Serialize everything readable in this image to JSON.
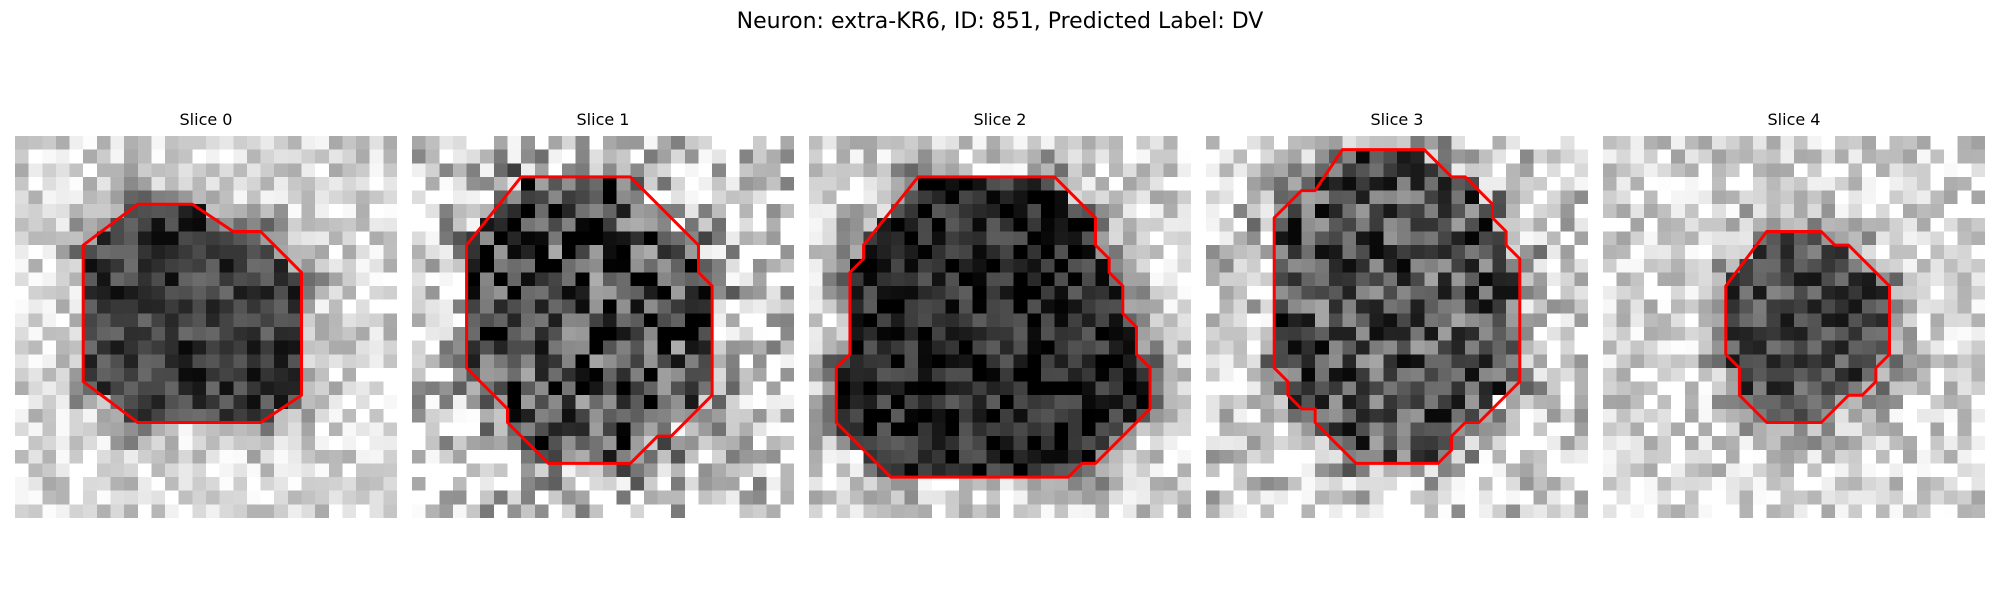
{
  "figure": {
    "title": "Neuron: extra-KR6, ID: 851, Predicted Label: DV"
  },
  "colors": {
    "contour": "#ff0000",
    "background": "#ffffff"
  },
  "colormap": "grayscale",
  "panels": [
    {
      "title": "Slice 0",
      "blob_darkness": 0.62,
      "noise_level": 0.2,
      "seed": 11,
      "contour": [
        [
          9,
          5
        ],
        [
          13,
          5
        ],
        [
          16,
          7
        ],
        [
          18,
          7
        ],
        [
          21,
          10
        ],
        [
          21,
          19
        ],
        [
          18,
          21
        ],
        [
          9,
          21
        ],
        [
          5,
          18
        ],
        [
          5,
          8
        ]
      ]
    },
    {
      "title": "Slice 1",
      "blob_darkness": 0.55,
      "noise_level": 0.38,
      "seed": 23,
      "contour": [
        [
          8,
          3
        ],
        [
          16,
          3
        ],
        [
          21,
          8
        ],
        [
          21,
          10
        ],
        [
          22,
          11
        ],
        [
          22,
          19
        ],
        [
          20,
          21
        ],
        [
          19,
          22
        ],
        [
          18,
          22
        ],
        [
          16,
          24
        ],
        [
          10,
          24
        ],
        [
          7,
          21
        ],
        [
          7,
          20
        ],
        [
          6,
          19
        ],
        [
          5,
          18
        ],
        [
          4,
          17
        ],
        [
          4,
          8
        ]
      ]
    },
    {
      "title": "Slice 2",
      "blob_darkness": 0.7,
      "noise_level": 0.22,
      "seed": 37,
      "contour": [
        [
          8,
          3
        ],
        [
          18,
          3
        ],
        [
          21,
          6
        ],
        [
          21,
          8
        ],
        [
          22,
          9
        ],
        [
          22,
          10
        ],
        [
          23,
          11
        ],
        [
          23,
          13
        ],
        [
          24,
          14
        ],
        [
          24,
          16
        ],
        [
          25,
          17
        ],
        [
          25,
          20
        ],
        [
          21,
          24
        ],
        [
          20,
          24
        ],
        [
          19,
          25
        ],
        [
          6,
          25
        ],
        [
          2,
          21
        ],
        [
          2,
          17
        ],
        [
          3,
          16
        ],
        [
          3,
          10
        ],
        [
          4,
          9
        ],
        [
          4,
          8
        ]
      ]
    },
    {
      "title": "Slice 3",
      "blob_darkness": 0.52,
      "noise_level": 0.32,
      "seed": 51,
      "contour": [
        [
          10,
          1
        ],
        [
          16,
          1
        ],
        [
          18,
          3
        ],
        [
          19,
          3
        ],
        [
          20,
          4
        ],
        [
          21,
          5
        ],
        [
          21,
          6
        ],
        [
          22,
          7
        ],
        [
          22,
          8
        ],
        [
          23,
          9
        ],
        [
          23,
          18
        ],
        [
          20,
          21
        ],
        [
          19,
          21
        ],
        [
          18,
          22
        ],
        [
          18,
          23
        ],
        [
          17,
          24
        ],
        [
          11,
          24
        ],
        [
          9,
          22
        ],
        [
          8,
          21
        ],
        [
          8,
          20
        ],
        [
          7,
          20
        ],
        [
          6,
          19
        ],
        [
          6,
          18
        ],
        [
          5,
          17
        ],
        [
          5,
          6
        ],
        [
          7,
          4
        ],
        [
          8,
          4
        ]
      ]
    },
    {
      "title": "Slice 4",
      "blob_darkness": 0.55,
      "noise_level": 0.22,
      "seed": 67,
      "contour": [
        [
          12,
          7
        ],
        [
          16,
          7
        ],
        [
          17,
          8
        ],
        [
          18,
          8
        ],
        [
          21,
          11
        ],
        [
          21,
          16
        ],
        [
          20,
          17
        ],
        [
          20,
          18
        ],
        [
          19,
          19
        ],
        [
          18,
          19
        ],
        [
          16,
          21
        ],
        [
          12,
          21
        ],
        [
          10,
          19
        ],
        [
          10,
          17
        ],
        [
          9,
          16
        ],
        [
          9,
          11
        ]
      ]
    }
  ]
}
